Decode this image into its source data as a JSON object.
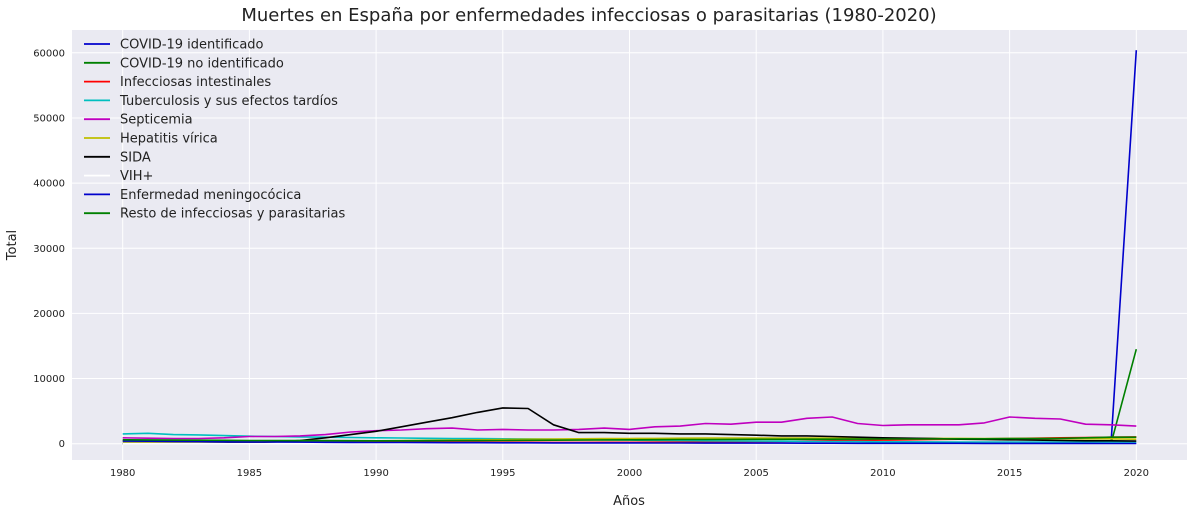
{
  "chart_data": {
    "type": "line",
    "title": "Muertes en España por enfermedades infecciosas o parasitarias (1980-2020)",
    "xlabel": "Años",
    "ylabel": "Total",
    "xlim": [
      1978,
      2022
    ],
    "ylim": [
      -2500,
      63500
    ],
    "x_ticks": [
      1980,
      1985,
      1990,
      1995,
      2000,
      2005,
      2010,
      2015,
      2020
    ],
    "y_ticks": [
      0,
      10000,
      20000,
      30000,
      40000,
      50000,
      60000
    ],
    "grid": true,
    "legend_position": "top-left",
    "background_color": "#eaeaf2",
    "grid_color": "#ffffff",
    "x": [
      1980,
      1981,
      1982,
      1983,
      1984,
      1985,
      1986,
      1987,
      1988,
      1989,
      1990,
      1991,
      1992,
      1993,
      1994,
      1995,
      1996,
      1997,
      1998,
      1999,
      2000,
      2001,
      2002,
      2003,
      2004,
      2005,
      2006,
      2007,
      2008,
      2009,
      2010,
      2011,
      2012,
      2013,
      2014,
      2015,
      2016,
      2017,
      2018,
      2019,
      2020
    ],
    "series": [
      {
        "name": "COVID-19 identificado",
        "color": "#0000cc",
        "values": [
          0,
          0,
          0,
          0,
          0,
          0,
          0,
          0,
          0,
          0,
          0,
          0,
          0,
          0,
          0,
          0,
          0,
          0,
          0,
          0,
          0,
          0,
          0,
          0,
          0,
          0,
          0,
          0,
          0,
          0,
          0,
          0,
          0,
          0,
          0,
          0,
          0,
          0,
          0,
          0,
          60400
        ]
      },
      {
        "name": "COVID-19 no identificado",
        "color": "#008000",
        "values": [
          0,
          0,
          0,
          0,
          0,
          0,
          0,
          0,
          0,
          0,
          0,
          0,
          0,
          0,
          0,
          0,
          0,
          0,
          0,
          0,
          0,
          0,
          0,
          0,
          0,
          0,
          0,
          0,
          0,
          0,
          0,
          0,
          0,
          0,
          0,
          0,
          0,
          0,
          0,
          0,
          14500
        ]
      },
      {
        "name": "Infecciosas intestinales",
        "color": "#ff0000",
        "values": [
          500,
          450,
          420,
          400,
          380,
          350,
          330,
          320,
          300,
          280,
          270,
          260,
          250,
          240,
          230,
          220,
          210,
          200,
          200,
          210,
          220,
          230,
          250,
          270,
          300,
          330,
          360,
          400,
          450,
          500,
          550,
          600,
          650,
          700,
          750,
          800,
          850,
          900,
          950,
          1000,
          1050
        ]
      },
      {
        "name": "Tuberculosis y sus efectos tardíos",
        "color": "#00bfbf",
        "values": [
          1500,
          1600,
          1400,
          1350,
          1250,
          1150,
          1100,
          1050,
          1000,
          950,
          900,
          870,
          830,
          800,
          780,
          760,
          740,
          700,
          650,
          600,
          560,
          520,
          480,
          450,
          420,
          400,
          380,
          360,
          340,
          320,
          300,
          290,
          280,
          270,
          260,
          250,
          250,
          240,
          230,
          230,
          200
        ]
      },
      {
        "name": "Septicemia",
        "color": "#bf00bf",
        "values": [
          900,
          850,
          800,
          800,
          900,
          1100,
          1100,
          1200,
          1400,
          1800,
          2000,
          2100,
          2300,
          2400,
          2100,
          2200,
          2100,
          2100,
          2200,
          2400,
          2200,
          2600,
          2700,
          3100,
          3000,
          3300,
          3300,
          3900,
          4100,
          3100,
          2800,
          2900,
          2900,
          2900,
          3200,
          4100,
          3900,
          3800,
          3000,
          2900,
          2700
        ]
      },
      {
        "name": "Hepatitis vírica",
        "color": "#bfbf00",
        "values": [
          300,
          280,
          260,
          260,
          280,
          300,
          320,
          340,
          380,
          420,
          450,
          480,
          520,
          560,
          600,
          650,
          700,
          730,
          760,
          780,
          800,
          820,
          840,
          860,
          870,
          880,
          880,
          870,
          860,
          850,
          840,
          830,
          820,
          810,
          800,
          790,
          780,
          770,
          760,
          750,
          700
        ]
      },
      {
        "name": "SIDA",
        "color": "#000000",
        "values": [
          0,
          0,
          0,
          0,
          50,
          150,
          300,
          500,
          900,
          1400,
          1900,
          2600,
          3300,
          4000,
          4800,
          5500,
          5400,
          2900,
          1700,
          1700,
          1600,
          1600,
          1500,
          1500,
          1400,
          1300,
          1200,
          1200,
          1100,
          1000,
          900,
          850,
          800,
          700,
          650,
          600,
          550,
          500,
          450,
          450,
          400
        ]
      },
      {
        "name": "VIH+",
        "color": "#ffffff",
        "values": [
          0,
          0,
          0,
          0,
          0,
          0,
          0,
          0,
          0,
          0,
          0,
          0,
          0,
          0,
          0,
          0,
          0,
          0,
          0,
          0,
          0,
          0,
          0,
          0,
          0,
          0,
          0,
          0,
          0,
          0,
          0,
          0,
          0,
          0,
          0,
          0,
          0,
          0,
          0,
          0,
          0
        ]
      },
      {
        "name": "Enfermedad meningocócica",
        "color": "#0000cc",
        "values": [
          400,
          380,
          350,
          320,
          300,
          280,
          260,
          240,
          220,
          200,
          190,
          180,
          170,
          160,
          150,
          140,
          140,
          130,
          130,
          120,
          120,
          110,
          110,
          100,
          100,
          90,
          90,
          80,
          80,
          70,
          70,
          60,
          60,
          60,
          50,
          50,
          50,
          50,
          50,
          40,
          30
        ]
      },
      {
        "name": "Resto de infecciosas y parasitarias",
        "color": "#008000",
        "values": [
          600,
          580,
          560,
          540,
          520,
          500,
          490,
          480,
          470,
          460,
          450,
          450,
          460,
          470,
          480,
          500,
          520,
          540,
          560,
          580,
          600,
          620,
          640,
          650,
          660,
          670,
          680,
          690,
          700,
          710,
          720,
          730,
          740,
          750,
          760,
          780,
          800,
          820,
          900,
          1000,
          1000
        ]
      }
    ]
  }
}
